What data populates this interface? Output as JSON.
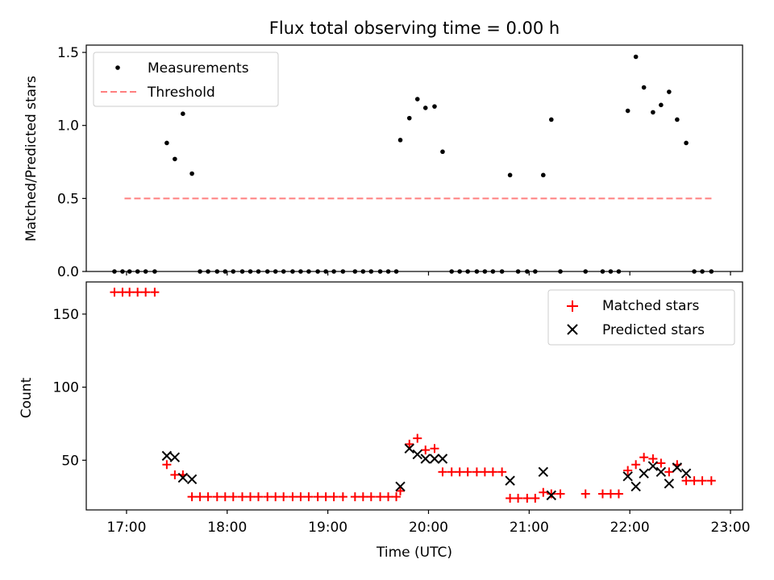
{
  "title": "Flux total observing time = 0.00 h",
  "x_label": "Time (UTC)",
  "x_ticks": [
    {
      "hour": 17,
      "label": "17:00"
    },
    {
      "hour": 18,
      "label": "18:00"
    },
    {
      "hour": 19,
      "label": "19:00"
    },
    {
      "hour": 20,
      "label": "20:00"
    },
    {
      "hour": 21,
      "label": "21:00"
    },
    {
      "hour": 22,
      "label": "22:00"
    },
    {
      "hour": 23,
      "label": "23:00"
    }
  ],
  "xlim_hours": [
    16.6,
    23.12
  ],
  "colors": {
    "measurement": "#000000",
    "threshold": "#ff7f7f",
    "matched": "#ff0000",
    "predicted": "#000000"
  },
  "chart_data": [
    {
      "type": "scatter",
      "ylabel": "Matched/Predicted stars",
      "ylim": [
        0,
        1.55
      ],
      "y_ticks": [
        {
          "value": 0,
          "label": "0.0"
        },
        {
          "value": 0.5,
          "label": "0.5"
        },
        {
          "value": 1.0,
          "label": "1.0"
        },
        {
          "value": 1.5,
          "label": "1.5"
        }
      ],
      "legend": {
        "position": "top-left",
        "entries": [
          "Measurements",
          "Threshold"
        ]
      },
      "threshold": {
        "name": "Threshold",
        "value": 0.5,
        "x_range_hours": [
          16.98,
          22.82
        ]
      },
      "series": [
        {
          "name": "Measurements",
          "x_hours": [
            16.88,
            16.96,
            17.03,
            17.11,
            17.19,
            17.28,
            17.4,
            17.48,
            17.56,
            17.65,
            17.73,
            17.81,
            17.9,
            17.98,
            18.06,
            18.15,
            18.23,
            18.31,
            18.4,
            18.48,
            18.56,
            18.65,
            18.73,
            18.81,
            18.9,
            18.98,
            19.06,
            19.15,
            19.27,
            19.35,
            19.43,
            19.52,
            19.6,
            19.68,
            19.72,
            19.81,
            19.89,
            19.97,
            20.06,
            20.14,
            20.23,
            20.31,
            20.39,
            20.48,
            20.56,
            20.64,
            20.73,
            20.81,
            20.89,
            20.98,
            21.06,
            21.14,
            21.22,
            21.31,
            21.56,
            21.73,
            21.81,
            21.89,
            21.98,
            22.06,
            22.14,
            22.23,
            22.31,
            22.39,
            22.47,
            22.56,
            22.64,
            22.72,
            22.81
          ],
          "y": [
            0,
            0,
            0,
            0,
            0,
            0,
            0.88,
            0.77,
            1.08,
            0.67,
            0,
            0,
            0,
            0,
            0,
            0,
            0,
            0,
            0,
            0,
            0,
            0,
            0,
            0,
            0,
            0,
            0,
            0,
            0,
            0,
            0,
            0,
            0,
            0,
            0.9,
            1.05,
            1.18,
            1.12,
            1.13,
            0.82,
            0,
            0,
            0,
            0,
            0,
            0,
            0,
            0.66,
            0,
            0,
            0,
            0.66,
            1.04,
            0,
            0,
            0,
            0,
            0,
            1.1,
            1.47,
            1.26,
            1.09,
            1.14,
            1.23,
            1.04,
            0.88,
            0,
            0,
            0
          ]
        }
      ]
    },
    {
      "type": "scatter",
      "ylabel": "Count",
      "ylim": [
        16,
        172
      ],
      "y_ticks": [
        {
          "value": 50,
          "label": "50"
        },
        {
          "value": 100,
          "label": "100"
        },
        {
          "value": 150,
          "label": "150"
        }
      ],
      "legend": {
        "position": "top-right",
        "entries": [
          "Matched stars",
          "Predicted stars"
        ]
      },
      "series": [
        {
          "name": "Matched stars",
          "marker": "plus",
          "x_hours": [
            16.88,
            16.96,
            17.03,
            17.11,
            17.19,
            17.28,
            17.4,
            17.48,
            17.56,
            17.65,
            17.73,
            17.81,
            17.9,
            17.98,
            18.06,
            18.15,
            18.23,
            18.31,
            18.4,
            18.48,
            18.56,
            18.65,
            18.73,
            18.81,
            18.9,
            18.98,
            19.06,
            19.15,
            19.27,
            19.35,
            19.43,
            19.52,
            19.6,
            19.68,
            19.72,
            19.81,
            19.89,
            19.97,
            20.06,
            20.14,
            20.23,
            20.31,
            20.39,
            20.48,
            20.56,
            20.64,
            20.73,
            20.81,
            20.89,
            20.98,
            21.06,
            21.14,
            21.22,
            21.31,
            21.56,
            21.73,
            21.81,
            21.89,
            21.98,
            22.06,
            22.14,
            22.23,
            22.31,
            22.39,
            22.47,
            22.56,
            22.64,
            22.72,
            22.81
          ],
          "y": [
            165,
            165,
            165,
            165,
            165,
            165,
            47,
            40,
            40,
            25,
            25,
            25,
            25,
            25,
            25,
            25,
            25,
            25,
            25,
            25,
            25,
            25,
            25,
            25,
            25,
            25,
            25,
            25,
            25,
            25,
            25,
            25,
            25,
            25,
            29,
            61,
            65,
            57,
            58,
            42,
            42,
            42,
            42,
            42,
            42,
            42,
            42,
            24,
            24,
            24,
            24,
            28,
            27,
            27,
            27,
            27,
            27,
            27,
            43,
            47,
            52,
            51,
            48,
            42,
            47,
            36,
            36,
            36,
            36
          ]
        },
        {
          "name": "Predicted stars",
          "marker": "x",
          "x_hours": [
            17.4,
            17.48,
            17.56,
            17.65,
            19.72,
            19.81,
            19.89,
            19.97,
            20.06,
            20.14,
            20.81,
            21.14,
            21.22,
            21.98,
            22.06,
            22.14,
            22.23,
            22.31,
            22.39,
            22.47,
            22.56
          ],
          "y": [
            53,
            52,
            38,
            37,
            32,
            58,
            54,
            51,
            51,
            51,
            36,
            42,
            26,
            39,
            32,
            41,
            46,
            42,
            34,
            45,
            41
          ]
        }
      ]
    }
  ]
}
